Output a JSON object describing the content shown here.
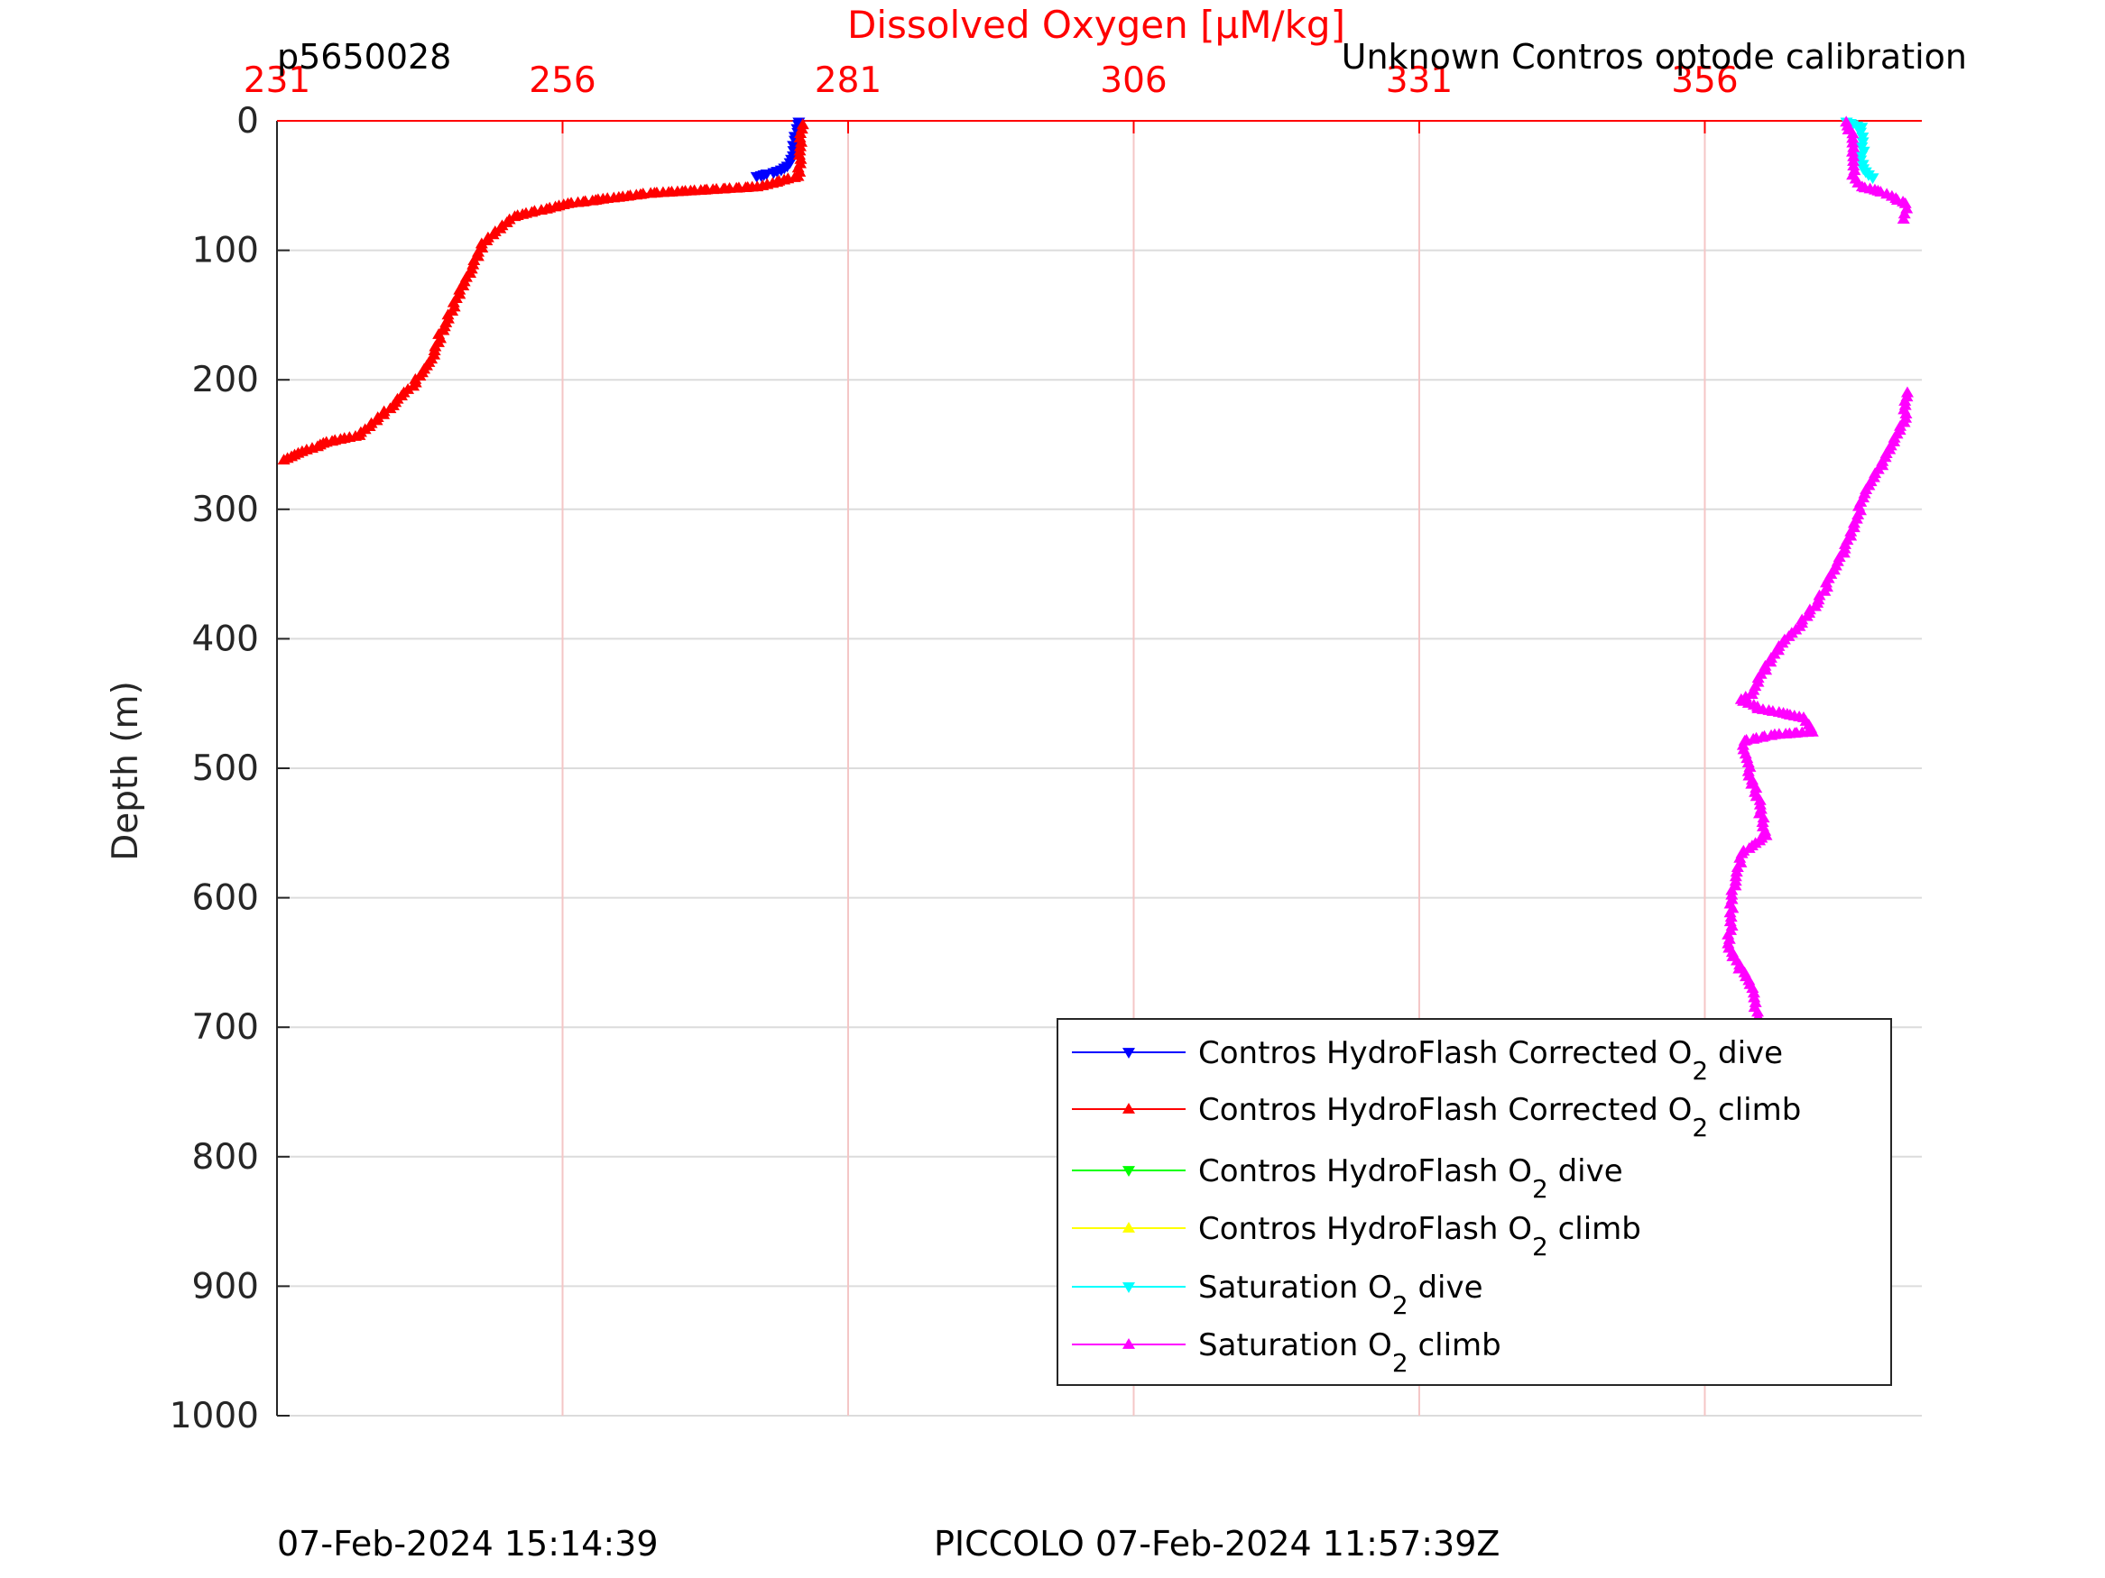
{
  "header": {
    "glider_id": "p5650028",
    "calibration_note": "Unknown Contros optode calibration"
  },
  "footer": {
    "plot_time": "07-Feb-2024 15:14:39",
    "mission_time": "PICCOLO 07-Feb-2024 11:57:39Z"
  },
  "chart_data": {
    "type": "line",
    "title": "Dissolved Oxygen [μM/kg]",
    "xlabel": "Dissolved Oxygen [μM/kg]",
    "ylabel": "Depth (m)",
    "xlim": [
      231,
      375
    ],
    "ylim": [
      0,
      1000
    ],
    "y_reversed": true,
    "x_axis_position": "top",
    "grid": true,
    "x_ticks": [
      "231",
      "256",
      "281",
      "306",
      "331",
      "356"
    ],
    "x_tick_values": [
      231,
      256,
      281,
      306,
      331,
      356
    ],
    "y_ticks": [
      "0",
      "100",
      "200",
      "300",
      "400",
      "500",
      "600",
      "700",
      "800",
      "900",
      "1000"
    ],
    "y_tick_values": [
      0,
      100,
      200,
      300,
      400,
      500,
      600,
      700,
      800,
      900,
      1000
    ],
    "legend_position": "bottom-right",
    "series": [
      {
        "name": "Contros HydroFlash Corrected O2 dive",
        "label_pre": "Contros HydroFlash Corrected O",
        "label_sub": "2",
        "label_post": " dive",
        "color": "#0000ff",
        "marker": "down",
        "points": [
          [
            276.6,
            1
          ],
          [
            276.6,
            3
          ],
          [
            276.3,
            15
          ],
          [
            276.1,
            27
          ],
          [
            275.6,
            35
          ],
          [
            275.0,
            38
          ],
          [
            274.0,
            41
          ],
          [
            273.0,
            43
          ]
        ]
      },
      {
        "name": "Contros HydroFlash Corrected O2 climb",
        "label_pre": "Contros HydroFlash Corrected O",
        "label_sub": "2",
        "label_post": " climb",
        "color": "#ff0000",
        "marker": "up",
        "points": [
          [
            277.0,
            3
          ],
          [
            276.8,
            20
          ],
          [
            276.6,
            43
          ],
          [
            273.1,
            51
          ],
          [
            263.6,
            56
          ],
          [
            256.5,
            64
          ],
          [
            251.7,
            74
          ],
          [
            249.0,
            95
          ],
          [
            247.6,
            121
          ],
          [
            246.2,
            147
          ],
          [
            245.3,
            165
          ],
          [
            244.6,
            184
          ],
          [
            242.8,
            205
          ],
          [
            241.1,
            220
          ],
          [
            238.1,
            243
          ],
          [
            235.1,
            249
          ],
          [
            231.6,
            262
          ]
        ]
      },
      {
        "name": "Contros HydroFlash O2 dive",
        "label_pre": "Contros HydroFlash O",
        "label_sub": "2",
        "label_post": " dive",
        "color": "#00ff00",
        "marker": "down",
        "points": []
      },
      {
        "name": "Contros HydroFlash O2 climb",
        "label_pre": "Contros HydroFlash O",
        "label_sub": "2",
        "label_post": " climb",
        "color": "#ffff00",
        "marker": "up",
        "points": []
      },
      {
        "name": "Saturation O2 dive",
        "label_pre": "Saturation O",
        "label_sub": "2",
        "label_post": " dive",
        "color": "#00ffff",
        "marker": "down",
        "points": [
          [
            368.3,
            1
          ],
          [
            369.7,
            5
          ],
          [
            369.8,
            20
          ],
          [
            369.8,
            37
          ],
          [
            370.7,
            44
          ]
        ]
      },
      {
        "name": "Saturation O2 climb",
        "label_pre": "Saturation O",
        "label_sub": "2",
        "label_post": " climb",
        "color": "#ff00ff",
        "marker": "up",
        "points": [
          [
            368.3,
            1
          ],
          [
            368.9,
            10
          ],
          [
            369.0,
            42
          ],
          [
            369.7,
            51
          ],
          [
            371.5,
            55
          ],
          [
            372.6,
            60
          ],
          [
            373.6,
            64
          ],
          [
            373.4,
            76
          ],
          null,
          [
            373.6,
            210
          ],
          [
            373.4,
            233
          ],
          [
            371.8,
            260
          ],
          [
            370.0,
            288
          ],
          [
            368.6,
            324
          ],
          [
            367.3,
            347
          ],
          [
            366.0,
            370
          ],
          [
            364.4,
            388
          ],
          [
            362.6,
            406
          ],
          [
            361.8,
            415
          ],
          [
            360.0,
            443
          ],
          [
            359.2,
            447
          ],
          [
            360.8,
            454
          ],
          [
            364.7,
            461
          ],
          [
            365.4,
            472
          ],
          [
            362.1,
            474
          ],
          [
            359.4,
            479
          ],
          [
            360.0,
            506
          ],
          [
            360.7,
            525
          ],
          [
            361.3,
            552
          ],
          [
            359.2,
            566
          ],
          [
            358.4,
            598
          ],
          [
            358.1,
            639
          ],
          [
            358.9,
            652
          ],
          [
            360.2,
            670
          ],
          [
            360.6,
            692
          ],
          [
            361.5,
            715
          ],
          [
            362.3,
            740
          ]
        ]
      }
    ]
  }
}
